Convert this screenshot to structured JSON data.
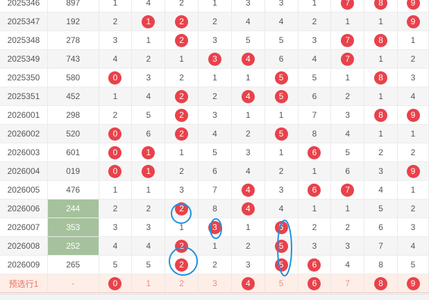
{
  "rows": [
    {
      "issue": "2025346",
      "num": "897",
      "cells": [
        {
          "v": "1",
          "hit": false
        },
        {
          "v": "4",
          "hit": false
        },
        {
          "v": "2",
          "hit": false
        },
        {
          "v": "1",
          "hit": false
        },
        {
          "v": "3",
          "hit": false
        },
        {
          "v": "3",
          "hit": false
        },
        {
          "v": "1",
          "hit": false
        },
        {
          "v": "7",
          "hit": true
        },
        {
          "v": "8",
          "hit": true
        },
        {
          "v": "9",
          "hit": true
        }
      ]
    },
    {
      "issue": "2025347",
      "num": "192",
      "cells": [
        {
          "v": "2",
          "hit": false
        },
        {
          "v": "1",
          "hit": true
        },
        {
          "v": "2",
          "hit": true
        },
        {
          "v": "2",
          "hit": false
        },
        {
          "v": "4",
          "hit": false
        },
        {
          "v": "4",
          "hit": false
        },
        {
          "v": "2",
          "hit": false
        },
        {
          "v": "1",
          "hit": false
        },
        {
          "v": "1",
          "hit": false
        },
        {
          "v": "9",
          "hit": true
        }
      ]
    },
    {
      "issue": "2025348",
      "num": "278",
      "cells": [
        {
          "v": "3",
          "hit": false
        },
        {
          "v": "1",
          "hit": false
        },
        {
          "v": "2",
          "hit": true
        },
        {
          "v": "3",
          "hit": false
        },
        {
          "v": "5",
          "hit": false
        },
        {
          "v": "5",
          "hit": false
        },
        {
          "v": "3",
          "hit": false
        },
        {
          "v": "7",
          "hit": true
        },
        {
          "v": "8",
          "hit": true
        },
        {
          "v": "1",
          "hit": false
        }
      ]
    },
    {
      "issue": "2025349",
      "num": "743",
      "cells": [
        {
          "v": "4",
          "hit": false
        },
        {
          "v": "2",
          "hit": false
        },
        {
          "v": "1",
          "hit": false
        },
        {
          "v": "3",
          "hit": true
        },
        {
          "v": "4",
          "hit": true
        },
        {
          "v": "6",
          "hit": false
        },
        {
          "v": "4",
          "hit": false
        },
        {
          "v": "7",
          "hit": true
        },
        {
          "v": "1",
          "hit": false
        },
        {
          "v": "2",
          "hit": false
        }
      ]
    },
    {
      "issue": "2025350",
      "num": "580",
      "cells": [
        {
          "v": "0",
          "hit": true
        },
        {
          "v": "3",
          "hit": false
        },
        {
          "v": "2",
          "hit": false
        },
        {
          "v": "1",
          "hit": false
        },
        {
          "v": "1",
          "hit": false
        },
        {
          "v": "5",
          "hit": true
        },
        {
          "v": "5",
          "hit": false
        },
        {
          "v": "1",
          "hit": false
        },
        {
          "v": "8",
          "hit": true
        },
        {
          "v": "3",
          "hit": false
        }
      ]
    },
    {
      "issue": "2025351",
      "num": "452",
      "cells": [
        {
          "v": "1",
          "hit": false
        },
        {
          "v": "4",
          "hit": false
        },
        {
          "v": "2",
          "hit": true
        },
        {
          "v": "2",
          "hit": false
        },
        {
          "v": "4",
          "hit": true
        },
        {
          "v": "5",
          "hit": true
        },
        {
          "v": "6",
          "hit": false
        },
        {
          "v": "2",
          "hit": false
        },
        {
          "v": "1",
          "hit": false
        },
        {
          "v": "4",
          "hit": false
        }
      ]
    },
    {
      "issue": "2026001",
      "num": "298",
      "cells": [
        {
          "v": "2",
          "hit": false
        },
        {
          "v": "5",
          "hit": false
        },
        {
          "v": "2",
          "hit": true
        },
        {
          "v": "3",
          "hit": false
        },
        {
          "v": "1",
          "hit": false
        },
        {
          "v": "1",
          "hit": false
        },
        {
          "v": "7",
          "hit": false
        },
        {
          "v": "3",
          "hit": false
        },
        {
          "v": "8",
          "hit": true
        },
        {
          "v": "9",
          "hit": true
        }
      ]
    },
    {
      "issue": "2026002",
      "num": "520",
      "cells": [
        {
          "v": "0",
          "hit": true
        },
        {
          "v": "6",
          "hit": false
        },
        {
          "v": "2",
          "hit": true
        },
        {
          "v": "4",
          "hit": false
        },
        {
          "v": "2",
          "hit": false
        },
        {
          "v": "5",
          "hit": true
        },
        {
          "v": "8",
          "hit": false
        },
        {
          "v": "4",
          "hit": false
        },
        {
          "v": "1",
          "hit": false
        },
        {
          "v": "1",
          "hit": false
        }
      ]
    },
    {
      "issue": "2026003",
      "num": "601",
      "cells": [
        {
          "v": "0",
          "hit": true
        },
        {
          "v": "1",
          "hit": true
        },
        {
          "v": "1",
          "hit": false
        },
        {
          "v": "5",
          "hit": false
        },
        {
          "v": "3",
          "hit": false
        },
        {
          "v": "1",
          "hit": false
        },
        {
          "v": "6",
          "hit": true
        },
        {
          "v": "5",
          "hit": false
        },
        {
          "v": "2",
          "hit": false
        },
        {
          "v": "2",
          "hit": false
        }
      ]
    },
    {
      "issue": "2026004",
      "num": "019",
      "cells": [
        {
          "v": "0",
          "hit": true
        },
        {
          "v": "1",
          "hit": true
        },
        {
          "v": "2",
          "hit": false
        },
        {
          "v": "6",
          "hit": false
        },
        {
          "v": "4",
          "hit": false
        },
        {
          "v": "2",
          "hit": false
        },
        {
          "v": "1",
          "hit": false
        },
        {
          "v": "6",
          "hit": false
        },
        {
          "v": "3",
          "hit": false
        },
        {
          "v": "9",
          "hit": true
        }
      ]
    },
    {
      "issue": "2026005",
      "num": "476",
      "cells": [
        {
          "v": "1",
          "hit": false
        },
        {
          "v": "1",
          "hit": false
        },
        {
          "v": "3",
          "hit": false
        },
        {
          "v": "7",
          "hit": false
        },
        {
          "v": "4",
          "hit": true
        },
        {
          "v": "3",
          "hit": false
        },
        {
          "v": "6",
          "hit": true
        },
        {
          "v": "7",
          "hit": true
        },
        {
          "v": "4",
          "hit": false
        },
        {
          "v": "1",
          "hit": false
        }
      ]
    },
    {
      "issue": "2026006",
      "num": "244",
      "green": true,
      "cells": [
        {
          "v": "2",
          "hit": false
        },
        {
          "v": "2",
          "hit": false
        },
        {
          "v": "2",
          "hit": true
        },
        {
          "v": "8",
          "hit": false
        },
        {
          "v": "4",
          "hit": true
        },
        {
          "v": "4",
          "hit": false
        },
        {
          "v": "1",
          "hit": false
        },
        {
          "v": "1",
          "hit": false
        },
        {
          "v": "5",
          "hit": false
        },
        {
          "v": "2",
          "hit": false
        }
      ]
    },
    {
      "issue": "2026007",
      "num": "353",
      "green": true,
      "cells": [
        {
          "v": "3",
          "hit": false
        },
        {
          "v": "3",
          "hit": false
        },
        {
          "v": "1",
          "hit": false
        },
        {
          "v": "3",
          "hit": true
        },
        {
          "v": "1",
          "hit": false
        },
        {
          "v": "5",
          "hit": true
        },
        {
          "v": "2",
          "hit": false
        },
        {
          "v": "2",
          "hit": false
        },
        {
          "v": "6",
          "hit": false
        },
        {
          "v": "3",
          "hit": false
        }
      ]
    },
    {
      "issue": "2026008",
      "num": "252",
      "green": true,
      "cells": [
        {
          "v": "4",
          "hit": false
        },
        {
          "v": "4",
          "hit": false
        },
        {
          "v": "2",
          "hit": true
        },
        {
          "v": "1",
          "hit": false
        },
        {
          "v": "2",
          "hit": false
        },
        {
          "v": "5",
          "hit": true
        },
        {
          "v": "3",
          "hit": false
        },
        {
          "v": "3",
          "hit": false
        },
        {
          "v": "7",
          "hit": false
        },
        {
          "v": "4",
          "hit": false
        }
      ]
    },
    {
      "issue": "2026009",
      "num": "265",
      "cells": [
        {
          "v": "5",
          "hit": false
        },
        {
          "v": "5",
          "hit": false
        },
        {
          "v": "2",
          "hit": true
        },
        {
          "v": "2",
          "hit": false
        },
        {
          "v": "3",
          "hit": false
        },
        {
          "v": "5",
          "hit": true
        },
        {
          "v": "6",
          "hit": true
        },
        {
          "v": "4",
          "hit": false
        },
        {
          "v": "8",
          "hit": false
        },
        {
          "v": "5",
          "hit": false
        }
      ]
    }
  ],
  "predict_row": {
    "issue": "预选行1",
    "num": "-",
    "cells": [
      {
        "v": "0",
        "hit": true
      },
      {
        "v": "1",
        "hit": false
      },
      {
        "v": "2",
        "hit": false
      },
      {
        "v": "3",
        "hit": false
      },
      {
        "v": "4",
        "hit": true
      },
      {
        "v": "5",
        "hit": false
      },
      {
        "v": "6",
        "hit": true
      },
      {
        "v": "7",
        "hit": false
      },
      {
        "v": "8",
        "hit": true
      },
      {
        "v": "9",
        "hit": true
      }
    ]
  },
  "colors": {
    "ball": "#e8424b",
    "annotation": "#1e90e0",
    "highlight": "#a5c29c",
    "predict_bg": "#fdeee8"
  }
}
